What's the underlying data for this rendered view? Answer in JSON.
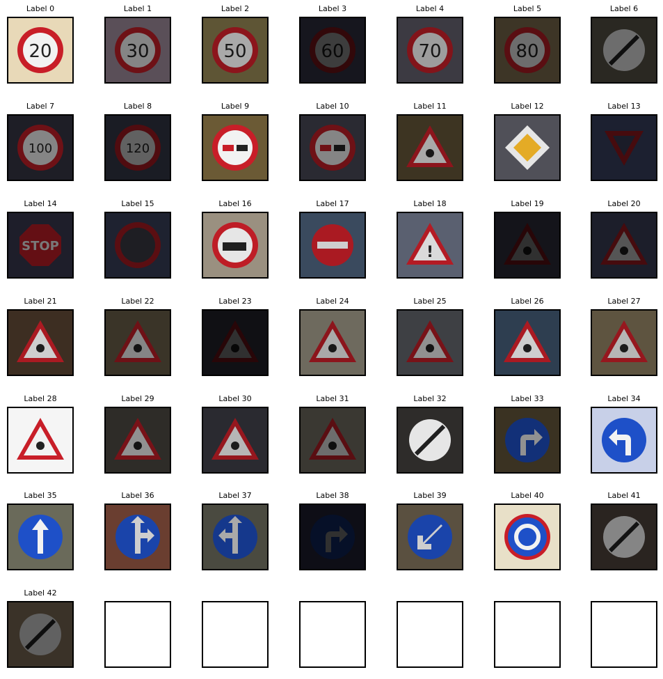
{
  "figure": {
    "columns": 7,
    "labels": [
      "Label 0",
      "Label 1",
      "Label 2",
      "Label 3",
      "Label 4",
      "Label 5",
      "Label 6",
      "Label 7",
      "Label 8",
      "Label 9",
      "Label 10",
      "Label 11",
      "Label 12",
      "Label 13",
      "Label 14",
      "Label 15",
      "Label 16",
      "Label 17",
      "Label 18",
      "Label 19",
      "Label 20",
      "Label 21",
      "Label 22",
      "Label 23",
      "Label 24",
      "Label 25",
      "Label 26",
      "Label 27",
      "Label 28",
      "Label 29",
      "Label 30",
      "Label 31",
      "Label 32",
      "Label 33",
      "Label 34",
      "Label 35",
      "Label 36",
      "Label 37",
      "Label 38",
      "Label 39",
      "Label 40",
      "Label 41",
      "Label 42"
    ],
    "empty_panels": 6,
    "signs": [
      {
        "kind": "speed",
        "text": "20",
        "bg": "#e8d9b8",
        "brightness": 1.0
      },
      {
        "kind": "speed",
        "text": "30",
        "bg": "#5a4f58",
        "brightness": 0.55
      },
      {
        "kind": "speed",
        "text": "50",
        "bg": "#5e5535",
        "brightness": 0.7
      },
      {
        "kind": "speed",
        "text": "60",
        "bg": "#16161e",
        "brightness": 0.25
      },
      {
        "kind": "speed",
        "text": "70",
        "bg": "#3c3a42",
        "brightness": 0.65
      },
      {
        "kind": "speed",
        "text": "80",
        "bg": "#3d3526",
        "brightness": 0.45
      },
      {
        "kind": "end",
        "text": "",
        "bg": "#2a2822",
        "brightness": 0.45
      },
      {
        "kind": "speed",
        "text": "100",
        "bg": "#1e1e26",
        "brightness": 0.55
      },
      {
        "kind": "speed",
        "text": "120",
        "bg": "#1a1c24",
        "brightness": 0.4
      },
      {
        "kind": "no-overtaking",
        "text": "",
        "bg": "#6b5a35",
        "brightness": 1.0
      },
      {
        "kind": "no-overtaking",
        "text": "",
        "bg": "#2a2a32",
        "brightness": 0.55
      },
      {
        "kind": "triangle-bold",
        "text": "",
        "bg": "#3d3422",
        "brightness": 0.7
      },
      {
        "kind": "priority",
        "text": "",
        "bg": "#505058",
        "brightness": 0.95
      },
      {
        "kind": "yield",
        "text": "",
        "bg": "#1c2030",
        "brightness": 0.35
      },
      {
        "kind": "stop",
        "text": "STOP",
        "bg": "#1e1e2a",
        "brightness": 0.5
      },
      {
        "kind": "no-vehicles",
        "text": "",
        "bg": "#1e2230",
        "brightness": 0.45
      },
      {
        "kind": "no-trucks",
        "text": "",
        "bg": "#9a9080",
        "brightness": 0.95
      },
      {
        "kind": "no-entry",
        "text": "",
        "bg": "#3a4a5e",
        "brightness": 0.85
      },
      {
        "kind": "triangle-bold",
        "text": "!",
        "bg": "#5a6070",
        "brightness": 0.9
      },
      {
        "kind": "triangle",
        "text": "",
        "bg": "#14141a",
        "brightness": 0.2
      },
      {
        "kind": "triangle",
        "text": "",
        "bg": "#1c1e2a",
        "brightness": 0.35
      },
      {
        "kind": "triangle-bold",
        "text": "",
        "bg": "#3d2e22",
        "brightness": 0.85
      },
      {
        "kind": "triangle",
        "text": "",
        "bg": "#3a3428",
        "brightness": 0.55
      },
      {
        "kind": "triangle",
        "text": "",
        "bg": "#101014",
        "brightness": 0.2
      },
      {
        "kind": "triangle",
        "text": "",
        "bg": "#6e6a5e",
        "brightness": 0.7
      },
      {
        "kind": "triangle",
        "text": "",
        "bg": "#3e4044",
        "brightness": 0.6
      },
      {
        "kind": "triangle-bold",
        "text": "",
        "bg": "#2e3e50",
        "brightness": 0.85
      },
      {
        "kind": "triangle",
        "text": "",
        "bg": "#5e5440",
        "brightness": 0.75
      },
      {
        "kind": "triangle-bold",
        "text": "",
        "bg": "#f5f5f5",
        "brightness": 1.0
      },
      {
        "kind": "triangle",
        "text": "",
        "bg": "#2e2c28",
        "brightness": 0.6
      },
      {
        "kind": "triangle",
        "text": "",
        "bg": "#2a2a30",
        "brightness": 0.75
      },
      {
        "kind": "triangle",
        "text": "",
        "bg": "#3a3832",
        "brightness": 0.45
      },
      {
        "kind": "end",
        "text": "",
        "bg": "#2e2c2a",
        "brightness": 0.95
      },
      {
        "kind": "blue-right",
        "text": "",
        "bg": "#3a3222",
        "brightness": 0.6
      },
      {
        "kind": "blue-left",
        "text": "",
        "bg": "#c8d0e8",
        "brightness": 1.0
      },
      {
        "kind": "blue-up",
        "text": "",
        "bg": "#6a6a5a",
        "brightness": 1.0
      },
      {
        "kind": "blue-straight-right",
        "text": "",
        "bg": "#6a3e30",
        "brightness": 0.85
      },
      {
        "kind": "blue-straight-left",
        "text": "",
        "bg": "#4a4a40",
        "brightness": 0.7
      },
      {
        "kind": "blue-right",
        "text": "",
        "bg": "#0e0e16",
        "brightness": 0.2
      },
      {
        "kind": "blue-keep-left",
        "text": "",
        "bg": "#5a5040",
        "brightness": 0.85
      },
      {
        "kind": "roundabout",
        "text": "",
        "bg": "#e8e0c8",
        "brightness": 1.0
      },
      {
        "kind": "end",
        "text": "",
        "bg": "#2a2420",
        "brightness": 0.55
      },
      {
        "kind": "end",
        "text": "",
        "bg": "#3a3228",
        "brightness": 0.4
      }
    ]
  }
}
